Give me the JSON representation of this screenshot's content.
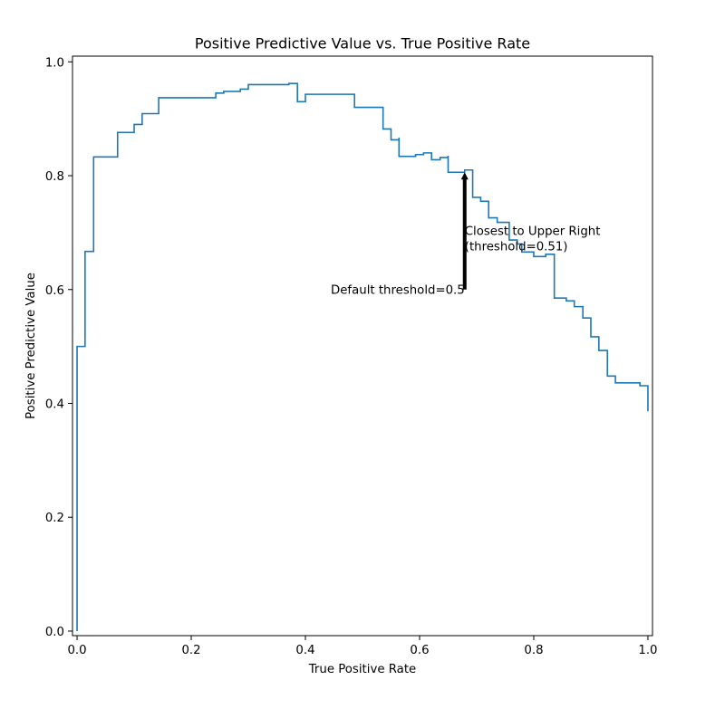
{
  "chart_data": {
    "type": "line",
    "title": "Positive Predictive Value vs. True Positive Rate",
    "xlabel": "True Positive Rate",
    "ylabel": "Positive Predictive Value",
    "xlim": [
      -0.008,
      1.008
    ],
    "ylim": [
      -0.008,
      1.01
    ],
    "xticks": [
      0.0,
      0.2,
      0.4,
      0.6,
      0.8,
      1.0
    ],
    "xtick_labels": [
      "0.0",
      "0.2",
      "0.4",
      "0.6",
      "0.8",
      "1.0"
    ],
    "yticks": [
      0.0,
      0.2,
      0.4,
      0.6,
      0.8,
      1.0
    ],
    "ytick_labels": [
      "0.0",
      "0.2",
      "0.4",
      "0.6",
      "0.8",
      "1.0"
    ],
    "grid": false,
    "line_color": "#1f77b4",
    "series": [
      {
        "name": "",
        "step": "pre",
        "x": [
          0.0,
          0.0,
          0.014,
          0.029,
          0.071,
          0.1,
          0.114,
          0.143,
          0.214,
          0.243,
          0.257,
          0.286,
          0.3,
          0.371,
          0.386,
          0.4,
          0.4,
          0.471,
          0.486,
          0.536,
          0.55,
          0.564,
          0.564,
          0.593,
          0.607,
          0.621,
          0.636,
          0.65,
          0.65,
          0.679,
          0.693,
          0.707,
          0.721,
          0.736,
          0.757,
          0.771,
          0.779,
          0.8,
          0.821,
          0.836,
          0.857,
          0.871,
          0.886,
          0.9,
          0.914,
          0.929,
          0.943,
          0.986,
          1.0
        ],
        "y": [
          0.0,
          0.5,
          0.667,
          0.833,
          0.876,
          0.89,
          0.909,
          0.937,
          0.937,
          0.945,
          0.948,
          0.952,
          0.96,
          0.962,
          0.93,
          0.935,
          0.943,
          0.943,
          0.92,
          0.882,
          0.863,
          0.867,
          0.834,
          0.837,
          0.84,
          0.828,
          0.832,
          0.835,
          0.806,
          0.81,
          0.762,
          0.755,
          0.726,
          0.718,
          0.687,
          0.68,
          0.666,
          0.658,
          0.662,
          0.585,
          0.58,
          0.57,
          0.55,
          0.517,
          0.493,
          0.448,
          0.436,
          0.431,
          0.386
        ]
      }
    ],
    "arrow": {
      "x": 0.679,
      "y_from": 0.6,
      "y_to": 0.806,
      "color": "#000000"
    },
    "annotations": [
      {
        "id": "default",
        "lines": [
          "Default threshold=0.5"
        ],
        "x": 0.679,
        "y": 0.6,
        "anchor": "end"
      },
      {
        "id": "closest",
        "lines": [
          "Closest to Upper Right",
          "(threshold=0.51)"
        ],
        "x": 0.679,
        "y": 0.703,
        "anchor": "start"
      }
    ]
  }
}
